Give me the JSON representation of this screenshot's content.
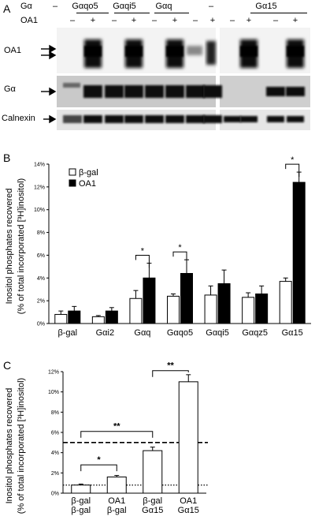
{
  "panels": {
    "a": {
      "letter": "A",
      "row_ga_label": "Gα",
      "row_oa1_label": "OA1",
      "lane_groups": [
        "–",
        "Gαqo5",
        "Gαqi5",
        "Gαq",
        "–",
        "Gα15"
      ],
      "oa1_marks": [
        "–",
        "+",
        "–",
        "+",
        "–",
        "+",
        "–",
        "+",
        "–",
        "+",
        "–",
        "+"
      ],
      "blot_labels": [
        "OA1",
        "Gα",
        "Calnexin"
      ]
    },
    "b": {
      "letter": "B",
      "ylabel_line1": "Inositol phosphates recovered",
      "ylabel_line2": "(% of total incorporated [³H]inositol)",
      "legend": [
        "β-gal",
        "OA1"
      ],
      "significance": "*"
    },
    "c": {
      "letter": "C",
      "ylabel_line1": "Inositol phosphates recovered",
      "ylabel_line2": "(% of total incorporated [³H]inositol)",
      "sig_single": "*",
      "sig_double": "**"
    }
  },
  "chart_data": [
    {
      "type": "bar",
      "panel": "B",
      "categories": [
        "β-gal",
        "Gαi2",
        "Gαq",
        "Gαqo5",
        "Gαqi5",
        "Gαqz5",
        "Gα15"
      ],
      "series": [
        {
          "name": "β-gal",
          "color": "#ffffff",
          "values": [
            0.8,
            0.6,
            2.2,
            2.4,
            2.5,
            2.3,
            3.7
          ],
          "errors": [
            0.3,
            0.1,
            0.7,
            0.2,
            0.8,
            0.4,
            0.3
          ]
        },
        {
          "name": "OA1",
          "color": "#000000",
          "values": [
            1.1,
            1.1,
            4.0,
            4.4,
            3.5,
            2.6,
            12.4
          ],
          "errors": [
            0.4,
            0.3,
            1.3,
            1.2,
            1.2,
            0.7,
            0.9
          ]
        }
      ],
      "yticks": [
        "0%",
        "2%",
        "4%",
        "6%",
        "8%",
        "10%",
        "12%",
        "14%"
      ],
      "ylim": [
        0,
        14
      ],
      "significant_categories": [
        "Gαq",
        "Gαqo5",
        "Gα15"
      ],
      "legend_position": "top-left"
    },
    {
      "type": "bar",
      "panel": "C",
      "categories": [
        [
          "β-gal",
          "β-gal"
        ],
        [
          "OA1",
          "β-gal"
        ],
        [
          "β-gal",
          "Gα15"
        ],
        [
          "OA1",
          "Gα15"
        ]
      ],
      "values": [
        0.8,
        1.6,
        4.2,
        11.0
      ],
      "errors": [
        0.1,
        0.15,
        0.35,
        0.7
      ],
      "bar_color": "#ffffff",
      "yticks": [
        "0%",
        "2%",
        "4%",
        "6%",
        "8%",
        "10%",
        "12%"
      ],
      "ylim": [
        0,
        12
      ],
      "reference_lines": [
        {
          "y": 5.0,
          "style": "dashed"
        },
        {
          "y": 0.8,
          "style": "dotted"
        }
      ],
      "significance": [
        {
          "from": 0,
          "to": 1,
          "label": "*"
        },
        {
          "from": 0,
          "to": 2,
          "label": "**"
        },
        {
          "from": 2,
          "to": 3,
          "label": "**"
        }
      ]
    }
  ]
}
